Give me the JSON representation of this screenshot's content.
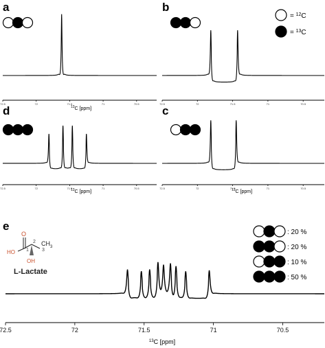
{
  "legend": [
    {
      "symbol": "open",
      "text": "= ",
      "iso": "12",
      "el": "C"
    },
    {
      "symbol": "filled",
      "text": "= ",
      "iso": "13",
      "el": "C"
    }
  ],
  "molecule": {
    "name": "L-Lactate",
    "atoms": [
      "O",
      "HO",
      "1",
      "2",
      "3",
      "CH",
      "3",
      "OH"
    ],
    "colors": {
      "red": "#c8502d",
      "black": "#222222"
    }
  },
  "chart_data": [
    {
      "id": "a",
      "panel_label": "a",
      "type": "line",
      "xlabel_iso": "13",
      "xlabel_rest": "C [ppm]",
      "xlim": [
        72.5,
        70.2
      ],
      "x_reversed": true,
      "xticks": [
        "72.5",
        "72",
        "71.5",
        "71",
        "70.5"
      ],
      "xtick_values": [
        72.5,
        72,
        71.5,
        71,
        70.5
      ],
      "isotopomer": [
        false,
        true,
        false
      ],
      "series": [
        {
          "peaks": [
            {
              "x": 71.62,
              "h": 0.98,
              "w": 0.007
            }
          ],
          "couplings": []
        }
      ]
    },
    {
      "id": "b",
      "panel_label": "b",
      "type": "line",
      "xlabel_iso": "",
      "xlabel_rest": "",
      "xlim": [
        72.5,
        70.2
      ],
      "x_reversed": true,
      "xticks": [
        "72.5",
        "72",
        "71.5",
        "71",
        "70.5"
      ],
      "xtick_values": [
        72.5,
        72,
        71.5,
        71,
        70.5
      ],
      "isotopomer": [
        true,
        true,
        false
      ],
      "series": [
        {
          "peaks": [
            {
              "x": 71.81,
              "h": 0.95,
              "w": 0.008
            },
            {
              "x": 71.43,
              "h": 0.95,
              "w": 0.008
            }
          ],
          "couplings": [
            [
              71.81,
              71.43
            ]
          ]
        }
      ]
    },
    {
      "id": "d",
      "panel_label": "d",
      "type": "line",
      "xlabel_iso": "13",
      "xlabel_rest": "C [ppm]",
      "xlim": [
        72.5,
        70.2
      ],
      "x_reversed": true,
      "xticks": [
        "72.5",
        "72",
        "71.5",
        "71",
        "70.5"
      ],
      "xtick_values": [
        72.5,
        72,
        71.5,
        71,
        70.5
      ],
      "isotopomer": [
        true,
        true,
        true
      ],
      "series": [
        {
          "peaks": [
            {
              "x": 71.81,
              "h": 0.72,
              "w": 0.008
            },
            {
              "x": 71.6,
              "h": 0.92,
              "w": 0.008
            },
            {
              "x": 71.46,
              "h": 0.92,
              "w": 0.008
            },
            {
              "x": 71.25,
              "h": 0.72,
              "w": 0.008
            }
          ],
          "couplings": [
            [
              71.81,
              71.6
            ],
            [
              71.6,
              71.46
            ],
            [
              71.46,
              71.25
            ]
          ]
        }
      ]
    },
    {
      "id": "c",
      "panel_label": "c",
      "type": "line",
      "xlabel_iso": "13",
      "xlabel_rest": "C [ppm]",
      "xlim": [
        72.5,
        70.2
      ],
      "x_reversed": true,
      "xticks": [
        "72.5",
        "72",
        "71.5",
        "71",
        "70.5"
      ],
      "xtick_values": [
        72.5,
        72,
        71.5,
        71,
        70.5
      ],
      "isotopomer": [
        false,
        true,
        true
      ],
      "series": [
        {
          "peaks": [
            {
              "x": 71.81,
              "h": 0.93,
              "w": 0.008
            },
            {
              "x": 71.45,
              "h": 0.93,
              "w": 0.008
            }
          ],
          "couplings": [
            [
              71.81,
              71.45
            ]
          ]
        }
      ]
    },
    {
      "id": "e",
      "panel_label": "e",
      "type": "line",
      "xlabel_iso": "13",
      "xlabel_rest": "C [ppm]",
      "xlim": [
        72.5,
        70.2
      ],
      "x_reversed": true,
      "xticks": [
        "72.5",
        "72",
        "71.5",
        "71",
        "70.5"
      ],
      "xtick_values": [
        72.5,
        72,
        71.5,
        71,
        70.5
      ],
      "isotopomer_legend": [
        {
          "pattern": [
            false,
            true,
            false
          ],
          "label": ": 20 %"
        },
        {
          "pattern": [
            true,
            true,
            false
          ],
          "label": ": 20 %"
        },
        {
          "pattern": [
            false,
            true,
            true
          ],
          "label": ": 10 %"
        },
        {
          "pattern": [
            true,
            true,
            true
          ],
          "label": ": 50 %"
        }
      ],
      "series": [
        {
          "peaks": [
            {
              "x": 71.62,
              "h": 0.68,
              "w": 0.007
            },
            {
              "x": 71.52,
              "h": 0.62,
              "w": 0.007
            },
            {
              "x": 71.46,
              "h": 0.66,
              "w": 0.007
            },
            {
              "x": 71.4,
              "h": 0.86,
              "w": 0.007
            },
            {
              "x": 71.36,
              "h": 0.78,
              "w": 0.007
            },
            {
              "x": 71.31,
              "h": 0.82,
              "w": 0.007
            },
            {
              "x": 71.27,
              "h": 0.75,
              "w": 0.007
            },
            {
              "x": 71.2,
              "h": 0.62,
              "w": 0.007
            },
            {
              "x": 71.03,
              "h": 0.66,
              "w": 0.007
            }
          ],
          "couplings": [
            [
              71.62,
              71.52
            ],
            [
              71.52,
              71.46
            ],
            [
              71.46,
              71.4
            ],
            [
              71.31,
              71.27
            ],
            [
              71.27,
              71.2
            ],
            [
              71.2,
              71.03
            ]
          ]
        }
      ]
    }
  ]
}
